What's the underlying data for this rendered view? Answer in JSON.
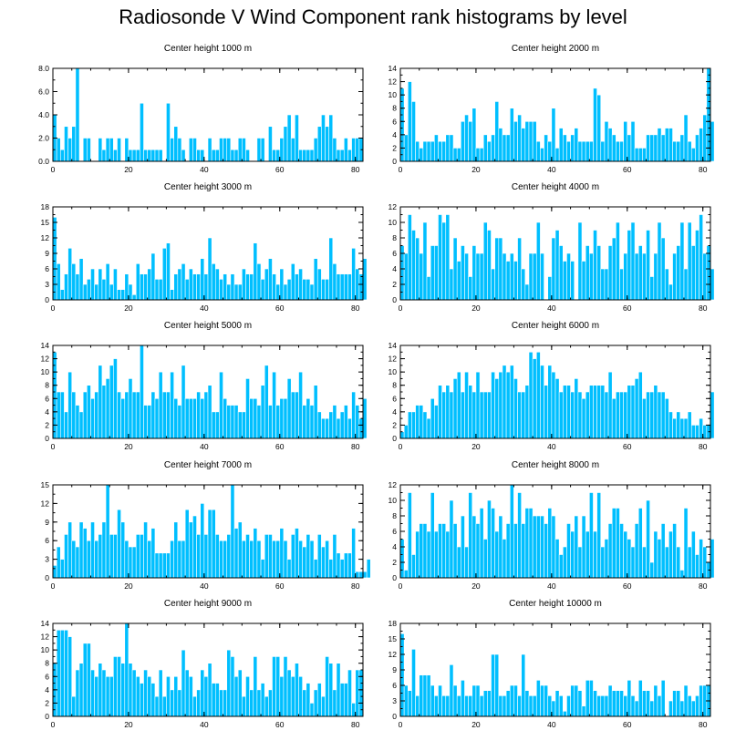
{
  "title": "Radiosonde V Wind Component rank histograms by level",
  "colors": {
    "bar": "#00bfff",
    "bar_edge": "#ffffff",
    "axis": "#000000"
  },
  "chart_data": [
    {
      "type": "bar",
      "title": "Center height 1000 m",
      "xlim": [
        0,
        82
      ],
      "ylim": [
        0,
        8
      ],
      "xticks": [
        0,
        20,
        40,
        60,
        80
      ],
      "yticks": [
        0,
        2,
        4,
        6,
        8
      ],
      "ytick_labels": [
        "0.0",
        "2.0",
        "4.0",
        "6.0",
        "8.0"
      ],
      "values": [
        4,
        2,
        1,
        3,
        2,
        3,
        8,
        0,
        2,
        2,
        0,
        0,
        2,
        1,
        2,
        2,
        1,
        2,
        0,
        2,
        1,
        1,
        1,
        5,
        1,
        1,
        1,
        1,
        1,
        0,
        5,
        2,
        3,
        2,
        1,
        0,
        2,
        2,
        1,
        1,
        0,
        2,
        1,
        1,
        2,
        2,
        2,
        1,
        1,
        2,
        2,
        1,
        0,
        0,
        2,
        2,
        0,
        3,
        1,
        1,
        2,
        3,
        4,
        2,
        4,
        1,
        1,
        1,
        1,
        2,
        3,
        4,
        3,
        4,
        2,
        1,
        1,
        2,
        1,
        2,
        2,
        2
      ]
    },
    {
      "type": "bar",
      "title": "Center height 2000 m",
      "xlim": [
        0,
        82
      ],
      "ylim": [
        0,
        14
      ],
      "xticks": [
        0,
        20,
        40,
        60,
        80
      ],
      "yticks": [
        0,
        2,
        4,
        6,
        8,
        10,
        12,
        14
      ],
      "values": [
        11,
        4,
        12,
        9,
        3,
        2,
        3,
        3,
        3,
        4,
        3,
        3,
        4,
        4,
        2,
        2,
        6,
        7,
        6,
        8,
        2,
        2,
        4,
        3,
        4,
        9,
        5,
        4,
        4,
        8,
        6,
        7,
        5,
        6,
        6,
        6,
        3,
        2,
        4,
        3,
        8,
        2,
        5,
        4,
        3,
        4,
        5,
        3,
        3,
        3,
        3,
        11,
        10,
        3,
        6,
        5,
        4,
        3,
        3,
        6,
        4,
        6,
        2,
        2,
        2,
        4,
        4,
        4,
        5,
        4,
        5,
        5,
        3,
        3,
        4,
        7,
        3,
        2,
        4,
        5,
        7,
        14,
        6
      ]
    },
    {
      "type": "bar",
      "title": "Center height 3000 m",
      "xlim": [
        0,
        82
      ],
      "ylim": [
        0,
        18
      ],
      "xticks": [
        0,
        20,
        40,
        60,
        80
      ],
      "yticks": [
        0,
        3,
        6,
        9,
        12,
        15,
        18
      ],
      "values": [
        16,
        7,
        2,
        5,
        10,
        7,
        5,
        8,
        3,
        4,
        6,
        3,
        6,
        4,
        7,
        3,
        6,
        2,
        2,
        5,
        3,
        1,
        7,
        5,
        5,
        6,
        9,
        4,
        4,
        10,
        11,
        2,
        5,
        6,
        7,
        4,
        6,
        5,
        5,
        8,
        5,
        12,
        7,
        6,
        4,
        5,
        3,
        5,
        3,
        3,
        6,
        5,
        5,
        11,
        7,
        4,
        6,
        8,
        5,
        3,
        6,
        3,
        4,
        7,
        5,
        6,
        4,
        4,
        3,
        8,
        6,
        4,
        4,
        12,
        7,
        5,
        5,
        5,
        5,
        10,
        6,
        5,
        8
      ]
    },
    {
      "type": "bar",
      "title": "Center height 4000 m",
      "xlim": [
        0,
        82
      ],
      "ylim": [
        0,
        12
      ],
      "xticks": [
        0,
        20,
        40,
        60,
        80
      ],
      "yticks": [
        0,
        2,
        4,
        6,
        8,
        10,
        12
      ],
      "values": [
        7,
        6,
        11,
        9,
        8,
        6,
        10,
        3,
        7,
        7,
        11,
        10,
        11,
        4,
        8,
        5,
        7,
        6,
        3,
        7,
        6,
        6,
        10,
        9,
        4,
        8,
        8,
        6,
        5,
        6,
        5,
        8,
        4,
        2,
        6,
        6,
        10,
        6,
        0,
        3,
        8,
        9,
        7,
        5,
        6,
        5,
        0,
        10,
        5,
        7,
        6,
        9,
        7,
        4,
        4,
        7,
        8,
        10,
        4,
        6,
        9,
        10,
        6,
        7,
        6,
        9,
        3,
        6,
        10,
        8,
        4,
        2,
        6,
        7,
        10,
        4,
        10,
        7,
        9,
        11,
        6,
        7,
        4
      ]
    },
    {
      "type": "bar",
      "title": "Center height 5000 m",
      "xlim": [
        0,
        82
      ],
      "ylim": [
        0,
        14
      ],
      "xticks": [
        0,
        20,
        40,
        60,
        80
      ],
      "yticks": [
        0,
        2,
        4,
        6,
        8,
        10,
        12,
        14
      ],
      "values": [
        13,
        7,
        7,
        4,
        10,
        7,
        5,
        4,
        7,
        8,
        6,
        7,
        11,
        8,
        9,
        11,
        12,
        7,
        6,
        7,
        9,
        7,
        7,
        14,
        5,
        5,
        7,
        6,
        10,
        7,
        7,
        10,
        6,
        5,
        11,
        6,
        6,
        6,
        7,
        6,
        7,
        8,
        4,
        4,
        10,
        6,
        5,
        5,
        5,
        4,
        4,
        9,
        6,
        6,
        5,
        8,
        11,
        5,
        10,
        5,
        6,
        6,
        9,
        7,
        7,
        10,
        5,
        6,
        5,
        8,
        4,
        3,
        3,
        4,
        5,
        3,
        4,
        5,
        3,
        7,
        5,
        3,
        6
      ]
    },
    {
      "type": "bar",
      "title": "Center height 6000 m",
      "xlim": [
        0,
        82
      ],
      "ylim": [
        0,
        14
      ],
      "xticks": [
        0,
        20,
        40,
        60,
        80
      ],
      "yticks": [
        0,
        2,
        4,
        6,
        8,
        10,
        12,
        14
      ],
      "values": [
        1,
        2,
        4,
        4,
        5,
        5,
        4,
        3,
        6,
        5,
        8,
        7,
        8,
        7,
        9,
        10,
        7,
        10,
        8,
        7,
        10,
        7,
        7,
        7,
        10,
        9,
        10,
        11,
        10,
        11,
        9,
        7,
        7,
        8,
        13,
        12,
        13,
        11,
        8,
        11,
        10,
        9,
        7,
        8,
        8,
        7,
        9,
        7,
        6,
        7,
        8,
        8,
        8,
        8,
        7,
        10,
        6,
        7,
        7,
        7,
        8,
        8,
        9,
        10,
        6,
        7,
        7,
        8,
        7,
        7,
        6,
        4,
        3,
        4,
        3,
        3,
        4,
        2,
        2,
        3,
        2,
        2,
        7
      ]
    },
    {
      "type": "bar",
      "title": "Center height 7000 m",
      "xlim": [
        0,
        82
      ],
      "ylim": [
        0,
        15
      ],
      "xticks": [
        0,
        20,
        40,
        60,
        80
      ],
      "yticks": [
        0,
        3,
        6,
        9,
        12,
        15
      ],
      "values": [
        2,
        5,
        3,
        7,
        9,
        6,
        5,
        9,
        8,
        6,
        9,
        6,
        7,
        9,
        15,
        7,
        7,
        11,
        9,
        6,
        5,
        5,
        7,
        7,
        9,
        6,
        8,
        4,
        4,
        4,
        4,
        6,
        9,
        6,
        6,
        11,
        9,
        10,
        7,
        12,
        7,
        11,
        11,
        7,
        6,
        6,
        7,
        15,
        8,
        9,
        6,
        7,
        6,
        8,
        6,
        3,
        7,
        7,
        6,
        6,
        8,
        6,
        3,
        7,
        8,
        6,
        5,
        7,
        6,
        3,
        7,
        5,
        6,
        3,
        7,
        4,
        3,
        4,
        4,
        8,
        1,
        1,
        1,
        3
      ]
    },
    {
      "type": "bar",
      "title": "Center height 8000 m",
      "xlim": [
        0,
        82
      ],
      "ylim": [
        0,
        12
      ],
      "xticks": [
        0,
        20,
        40,
        60,
        80
      ],
      "yticks": [
        0,
        2,
        4,
        6,
        8,
        10,
        12
      ],
      "values": [
        5,
        1,
        11,
        3,
        6,
        7,
        7,
        6,
        11,
        6,
        7,
        7,
        6,
        10,
        7,
        4,
        8,
        4,
        11,
        8,
        7,
        9,
        5,
        10,
        9,
        6,
        8,
        5,
        7,
        12,
        7,
        11,
        7,
        9,
        9,
        8,
        8,
        8,
        7,
        9,
        8,
        5,
        3,
        4,
        7,
        6,
        8,
        4,
        8,
        6,
        11,
        6,
        11,
        4,
        5,
        7,
        9,
        9,
        7,
        6,
        5,
        4,
        7,
        9,
        4,
        10,
        2,
        6,
        5,
        7,
        4,
        6,
        7,
        4,
        1,
        9,
        4,
        6,
        3,
        5,
        4,
        2,
        5
      ]
    },
    {
      "type": "bar",
      "title": "Center height 9000 m",
      "xlim": [
        0,
        82
      ],
      "ylim": [
        0,
        14
      ],
      "xticks": [
        0,
        20,
        40,
        60,
        80
      ],
      "yticks": [
        0,
        2,
        4,
        6,
        8,
        10,
        12,
        14
      ],
      "values": [
        8,
        13,
        13,
        13,
        12,
        3,
        7,
        8,
        11,
        11,
        7,
        6,
        8,
        7,
        6,
        6,
        9,
        9,
        8,
        14,
        8,
        7,
        6,
        5,
        7,
        6,
        5,
        3,
        7,
        3,
        6,
        4,
        6,
        4,
        10,
        7,
        6,
        3,
        4,
        7,
        6,
        8,
        5,
        5,
        4,
        4,
        10,
        9,
        6,
        7,
        3,
        6,
        4,
        9,
        4,
        5,
        3,
        4,
        9,
        9,
        6,
        9,
        7,
        6,
        8,
        6,
        4,
        5,
        2,
        4,
        5,
        3,
        9,
        8,
        4,
        8,
        5,
        5,
        7,
        2,
        7,
        7
      ]
    },
    {
      "type": "bar",
      "title": "Center height 10000 m",
      "xlim": [
        0,
        82
      ],
      "ylim": [
        0,
        18
      ],
      "xticks": [
        0,
        20,
        40,
        60,
        80
      ],
      "yticks": [
        0,
        3,
        6,
        9,
        12,
        15,
        18
      ],
      "values": [
        16,
        6,
        5,
        13,
        4,
        8,
        8,
        8,
        6,
        4,
        6,
        4,
        4,
        10,
        6,
        4,
        7,
        4,
        4,
        6,
        6,
        4,
        5,
        5,
        12,
        12,
        4,
        4,
        5,
        6,
        6,
        4,
        12,
        5,
        4,
        4,
        7,
        6,
        6,
        4,
        3,
        5,
        4,
        1,
        4,
        6,
        6,
        5,
        2,
        7,
        7,
        5,
        4,
        4,
        4,
        6,
        5,
        5,
        5,
        4,
        7,
        4,
        3,
        7,
        5,
        5,
        3,
        6,
        4,
        7,
        0,
        3,
        5,
        5,
        3,
        6,
        4,
        3,
        4,
        6,
        6,
        6
      ]
    }
  ]
}
